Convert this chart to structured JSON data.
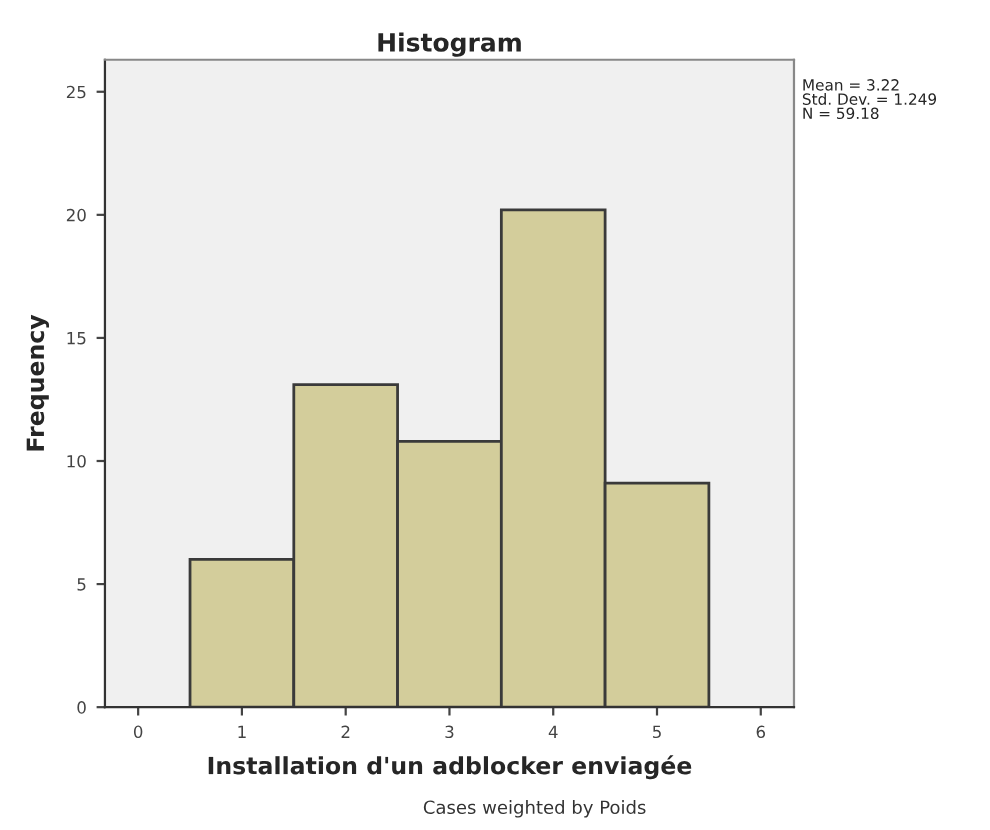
{
  "chart_data": {
    "type": "histogram",
    "title": "Histogram",
    "xlabel": "Installation d'un adblocker enviagée",
    "ylabel": "Frequency",
    "bins": [
      0.5,
      1.5,
      2.5,
      3.5,
      4.5,
      5.5
    ],
    "values": [
      6.0,
      13.1,
      10.8,
      20.2,
      9.1
    ],
    "color": "#d3cd9b",
    "xlim": [
      -0.32,
      6.32
    ],
    "xticks": [
      0,
      1,
      2,
      3,
      4,
      5,
      6
    ],
    "ylim": [
      0,
      26.3
    ],
    "yticks": [
      0,
      5,
      10,
      15,
      20,
      25
    ],
    "grid": false,
    "annotations": [
      "Mean = 3.22\nStd. Dev. = 1.249\nN = 59.18",
      "Cases weighted by Poids"
    ]
  }
}
